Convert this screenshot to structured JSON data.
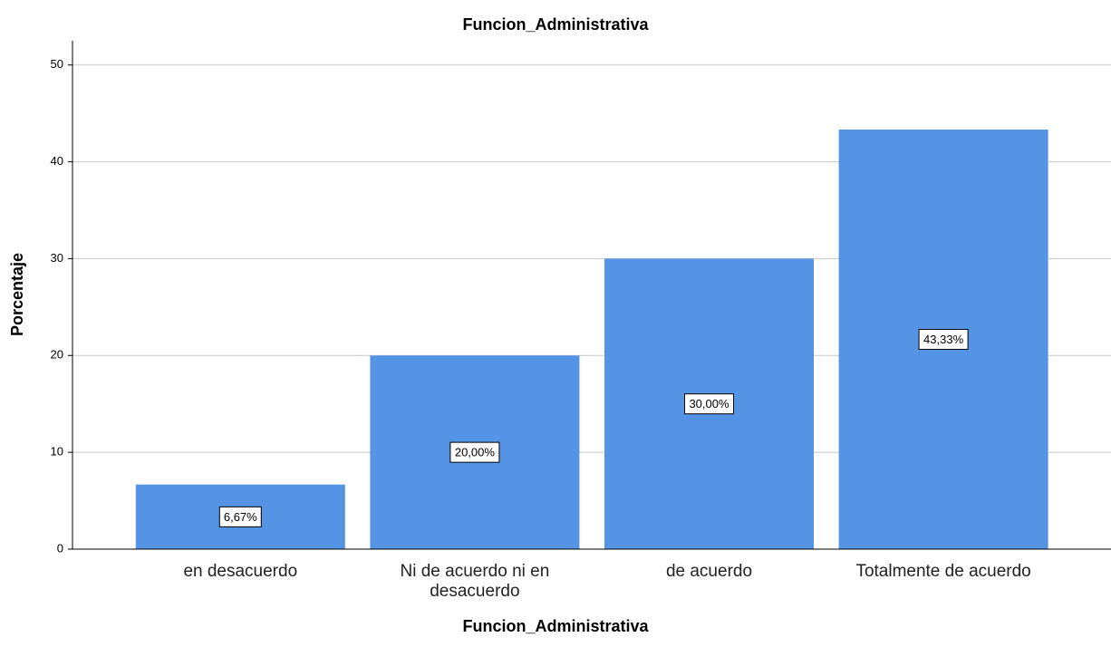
{
  "chart_data": {
    "type": "bar",
    "title": "Funcion_Administrativa",
    "x_label": "Funcion_Administrativa",
    "y_label": "Porcentaje",
    "categories": [
      "en desacuerdo",
      "Ni de acuerdo ni en desacuerdo",
      "de acuerdo",
      "Totalmente de acuerdo"
    ],
    "values": [
      6.67,
      20,
      30,
      43.33
    ],
    "value_labels": [
      "6,67%",
      "20,00%",
      "30,00%",
      "43,33%"
    ],
    "color": "#5594e5",
    "ylim": [
      0,
      52.5
    ],
    "yticks": [
      0,
      10,
      20,
      30,
      40,
      50
    ],
    "grid": true
  }
}
